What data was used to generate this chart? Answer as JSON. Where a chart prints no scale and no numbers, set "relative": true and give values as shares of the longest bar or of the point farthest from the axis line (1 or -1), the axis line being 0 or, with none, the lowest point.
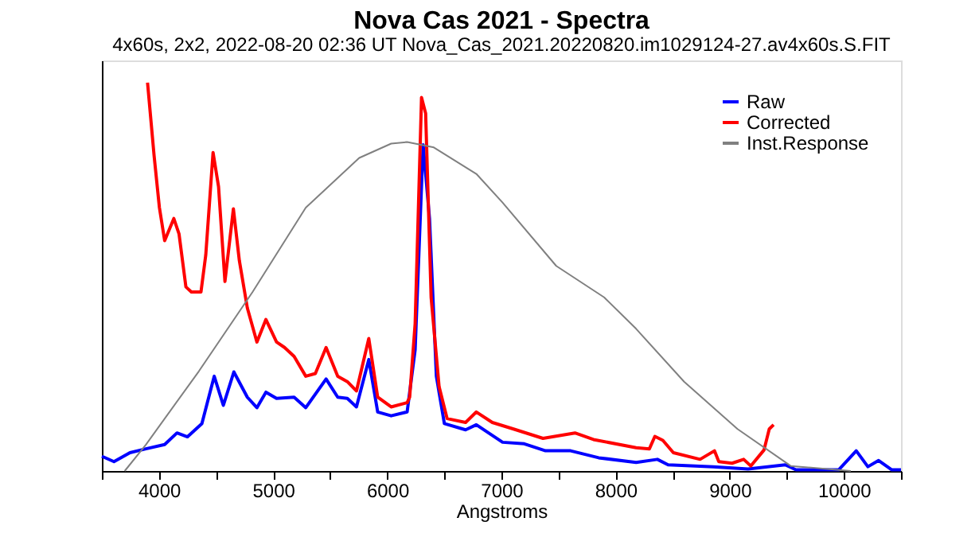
{
  "chart_data": {
    "type": "line",
    "title": "Nova Cas 2021 - Spectra",
    "subtitle": "4x60s, 2x2, 2022-08-20 02:36 UT Nova_Cas_2021.20220820.im1029124-27.av4x60s.S.FIT",
    "xlabel": "Angstroms",
    "relative": true,
    "xlim": [
      3500,
      10500
    ],
    "xticks": [
      {
        "value": 3500,
        "label": null
      },
      4000,
      {
        "value": 4500,
        "label": null
      },
      5000,
      {
        "value": 5500,
        "label": null
      },
      6000,
      {
        "value": 6500,
        "label": null
      },
      7000,
      {
        "value": 7500,
        "label": null
      },
      8000,
      {
        "value": 8500,
        "label": null
      },
      9000,
      {
        "value": 9500,
        "label": null
      },
      10000,
      {
        "value": 10500,
        "label": null
      }
    ],
    "grid": false,
    "legend": "top right",
    "marker": "none",
    "line_style": "solid",
    "series": [
      {
        "name": "Raw",
        "color": "#0000ff",
        "x": [
          3500,
          3606,
          3746,
          3886,
          4050,
          4158,
          4250,
          4376,
          4484,
          4564,
          4656,
          4774,
          4858,
          4937,
          5030,
          5184,
          5286,
          5464,
          5566,
          5650,
          5730,
          5838,
          5916,
          6034,
          6174,
          6244,
          6314,
          6370,
          6430,
          6500,
          6686,
          6780,
          7010,
          7200,
          7386,
          7606,
          7852,
          8180,
          8366,
          8460,
          8856,
          9160,
          9486,
          9580,
          9954,
          10108,
          10210,
          10304,
          10420,
          10500
        ],
        "values": [
          0.038,
          0.024,
          0.047,
          0.057,
          0.068,
          0.098,
          0.088,
          0.122,
          0.244,
          0.169,
          0.255,
          0.19,
          0.163,
          0.203,
          0.187,
          0.19,
          0.163,
          0.237,
          0.19,
          0.187,
          0.165,
          0.287,
          0.152,
          0.142,
          0.152,
          0.312,
          0.84,
          0.65,
          0.244,
          0.122,
          0.106,
          0.119,
          0.074,
          0.07,
          0.052,
          0.052,
          0.034,
          0.022,
          0.03,
          0.016,
          0.011,
          0.005,
          0.016,
          0.003,
          0.003,
          0.052,
          0.011,
          0.027,
          0.003,
          0.003
        ]
      },
      {
        "name": "Corrected",
        "color": "#ff0000",
        "x": [
          3900,
          3957,
          4004,
          4050,
          4130,
          4176,
          4236,
          4284,
          4368,
          4410,
          4474,
          4522,
          4578,
          4652,
          4704,
          4774,
          4858,
          4937,
          5030,
          5100,
          5184,
          5286,
          5370,
          5464,
          5566,
          5650,
          5730,
          5838,
          5916,
          6034,
          6174,
          6196,
          6244,
          6300,
          6336,
          6384,
          6454,
          6524,
          6686,
          6780,
          6920,
          7106,
          7364,
          7644,
          7806,
          8180,
          8296,
          8344,
          8414,
          8506,
          8740,
          8866,
          8904,
          9020,
          9122,
          9184,
          9300,
          9346,
          9384
        ],
        "values": [
          1.0,
          0.813,
          0.678,
          0.593,
          0.65,
          0.61,
          0.474,
          0.461,
          0.461,
          0.556,
          0.82,
          0.732,
          0.488,
          0.675,
          0.542,
          0.42,
          0.332,
          0.39,
          0.332,
          0.318,
          0.295,
          0.244,
          0.251,
          0.318,
          0.244,
          0.23,
          0.206,
          0.341,
          0.19,
          0.165,
          0.176,
          0.19,
          0.379,
          0.962,
          0.921,
          0.447,
          0.217,
          0.135,
          0.125,
          0.152,
          0.125,
          0.108,
          0.084,
          0.098,
          0.081,
          0.06,
          0.057,
          0.089,
          0.079,
          0.047,
          0.03,
          0.052,
          0.024,
          0.02,
          0.03,
          0.013,
          0.054,
          0.108,
          0.119
        ]
      },
      {
        "name": "Inst.Response",
        "color": "#808080",
        "x": [
          3700,
          3886,
          4350,
          4820,
          5286,
          5754,
          6034,
          6174,
          6408,
          6780,
          7010,
          7480,
          7900,
          8180,
          8600,
          9068,
          9534,
          10060
        ],
        "values": [
          0,
          0.068,
          0.257,
          0.461,
          0.678,
          0.806,
          0.843,
          0.847,
          0.833,
          0.765,
          0.691,
          0.528,
          0.447,
          0.366,
          0.23,
          0.108,
          0.013,
          0
        ]
      }
    ]
  }
}
